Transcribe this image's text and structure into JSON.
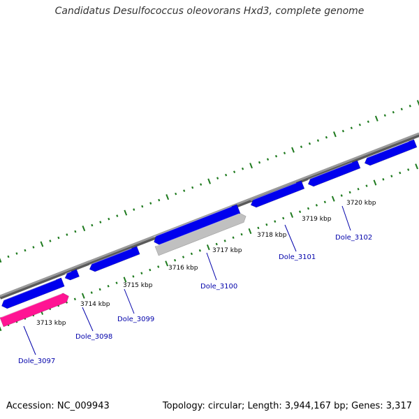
{
  "title": "Candidatus Desulfococcus oleovorans Hxd3, complete genome",
  "footer": {
    "accession": "Accession: NC_009943",
    "summary": "Topology: circular; Length: 3,944,167 bp; Genes: 3,317"
  },
  "colors": {
    "backbone": "#8a8a8a",
    "tick": "#1e7a1e",
    "gene_forward": "#0000ee",
    "gene_highlight": "#ff1493",
    "gene_pseudo": "#c0c0c0",
    "label": "#0000aa"
  },
  "scale_labels": [
    "3713 kbp",
    "3714 kbp",
    "3715 kbp",
    "3716 kbp",
    "3717 kbp",
    "3718 kbp",
    "3719 kbp",
    "3720 kbp"
  ],
  "genes": [
    {
      "label": "Dole_3097",
      "color": "highlight"
    },
    {
      "label": "Dole_3098",
      "color": "forward"
    },
    {
      "label": "Dole_3099",
      "color": "forward"
    },
    {
      "label": "Dole_3100",
      "color": "pseudo"
    },
    {
      "label": "Dole_3101",
      "color": "forward"
    },
    {
      "label": "Dole_3102",
      "color": "forward"
    }
  ]
}
